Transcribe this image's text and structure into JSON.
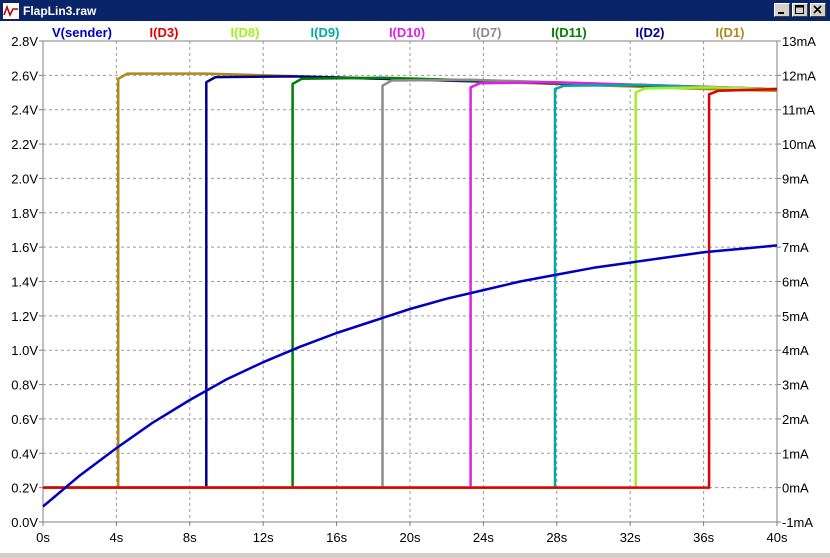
{
  "window": {
    "title": "FlapLin3.raw",
    "minimize_label": "",
    "maximize_label": "",
    "close_label": ""
  },
  "colors": {
    "titlebar": "#0a246a",
    "grid": "#9a9a9a",
    "axis_text": "#000000"
  },
  "chart_data": {
    "type": "line",
    "title": "",
    "xlabel": "",
    "x_ticks": [
      "0s",
      "4s",
      "8s",
      "12s",
      "16s",
      "20s",
      "24s",
      "28s",
      "32s",
      "36s",
      "40s"
    ],
    "x_range": [
      0,
      40
    ],
    "y_left_ticks": [
      "0.0V",
      "0.2V",
      "0.4V",
      "0.6V",
      "0.8V",
      "1.0V",
      "1.2V",
      "1.4V",
      "1.6V",
      "1.8V",
      "2.0V",
      "2.2V",
      "2.4V",
      "2.6V",
      "2.8V"
    ],
    "y_left_range": [
      0.0,
      2.8
    ],
    "y_right_ticks": [
      "-1mA",
      "0mA",
      "1mA",
      "2mA",
      "3mA",
      "4mA",
      "5mA",
      "6mA",
      "7mA",
      "8mA",
      "9mA",
      "10mA",
      "11mA",
      "12mA",
      "13mA"
    ],
    "y_right_range": [
      -1,
      13
    ],
    "grid": true,
    "legend": "top",
    "series": [
      {
        "name": "V(sender)",
        "axis": "left",
        "color": "#0000c0",
        "x": [
          0,
          2,
          4,
          6,
          8,
          10,
          12,
          14,
          16,
          18,
          20,
          22,
          24,
          26,
          28,
          30,
          32,
          34,
          36,
          38,
          40
        ],
        "y": [
          0.09,
          0.27,
          0.43,
          0.58,
          0.71,
          0.83,
          0.93,
          1.02,
          1.1,
          1.17,
          1.24,
          1.3,
          1.35,
          1.4,
          1.44,
          1.48,
          1.51,
          1.54,
          1.57,
          1.59,
          1.61
        ]
      },
      {
        "name": "I(D3)",
        "axis": "right",
        "color": "#e00000",
        "x": [
          0,
          36.3,
          36.3,
          36.8,
          40
        ],
        "y": [
          0,
          0,
          11.45,
          11.55,
          11.6
        ]
      },
      {
        "name": "I(D8)",
        "axis": "right",
        "color": "#a0f020",
        "x": [
          0,
          32.3,
          32.3,
          32.8,
          36.3,
          40
        ],
        "y": [
          0,
          0,
          11.5,
          11.62,
          11.65,
          11.6
        ]
      },
      {
        "name": "I(D9)",
        "axis": "right",
        "color": "#00a8a8",
        "x": [
          0,
          27.9,
          27.9,
          28.4,
          32.3,
          40
        ],
        "y": [
          0,
          0,
          11.6,
          11.7,
          11.72,
          11.6
        ]
      },
      {
        "name": "I(D10)",
        "axis": "right",
        "color": "#e020e0",
        "x": [
          0,
          23.3,
          23.3,
          23.8,
          27.9,
          40
        ],
        "y": [
          0,
          0,
          11.65,
          11.77,
          11.8,
          11.6
        ]
      },
      {
        "name": "I(D7)",
        "axis": "right",
        "color": "#8c8c8c",
        "x": [
          0,
          18.5,
          18.5,
          19.0,
          23.3,
          40
        ],
        "y": [
          0,
          0,
          11.7,
          11.85,
          11.87,
          11.6
        ]
      },
      {
        "name": "I(D11)",
        "axis": "right",
        "color": "#008000",
        "x": [
          0,
          13.6,
          13.6,
          14.1,
          18.5,
          40
        ],
        "y": [
          0,
          0,
          11.75,
          11.9,
          11.93,
          11.6
        ]
      },
      {
        "name": "I(D2)",
        "axis": "right",
        "color": "#00008c",
        "x": [
          0,
          8.9,
          8.9,
          9.4,
          13.6,
          40
        ],
        "y": [
          0,
          0,
          11.8,
          11.95,
          11.97,
          11.6
        ]
      },
      {
        "name": "I(D1)",
        "axis": "right",
        "color": "#b08818",
        "x": [
          0,
          4.1,
          4.1,
          4.6,
          8.9,
          18.5,
          27.9,
          36.3,
          40
        ],
        "y": [
          0,
          0,
          11.9,
          12.05,
          12.05,
          11.9,
          11.75,
          11.6,
          11.55
        ]
      }
    ]
  }
}
